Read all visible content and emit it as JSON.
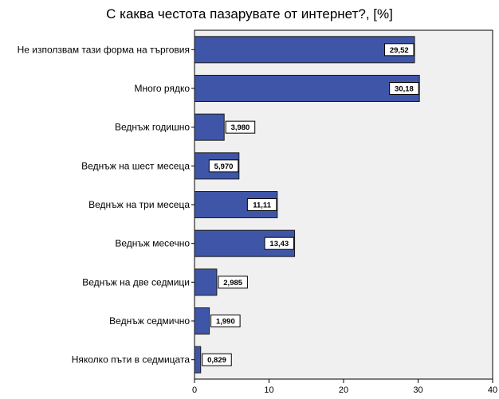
{
  "chart_data": {
    "type": "bar",
    "orientation": "horizontal",
    "title": "С каква честота пазарувате от интернет?, [%]",
    "categories": [
      "Не използвам тази форма на търговия",
      "Много рядко",
      "Веднъж годишно",
      "Веднъж на шест месеца",
      "Веднъж на три месеца",
      "Веднъж месечно",
      "Веднъж на две седмици",
      "Веднъж седмично",
      "Няколко пъти в седмицата"
    ],
    "values": [
      29.52,
      30.18,
      3.98,
      5.97,
      11.11,
      13.43,
      2.985,
      1.99,
      0.829
    ],
    "value_labels": [
      "29,52",
      "30,18",
      "3,980",
      "5,970",
      "11,11",
      "13,43",
      "2,985",
      "1,990",
      "0,829"
    ],
    "xlim": [
      0,
      40
    ],
    "xticks": [
      0,
      10,
      20,
      30,
      40
    ],
    "xlabel": "",
    "ylabel": "",
    "grid": false,
    "colors": {
      "bar": "#3f56a8",
      "bar_edge": "#1a1a1a",
      "plot_background": "#f0f0f0",
      "label_box": "#ffffff"
    }
  }
}
